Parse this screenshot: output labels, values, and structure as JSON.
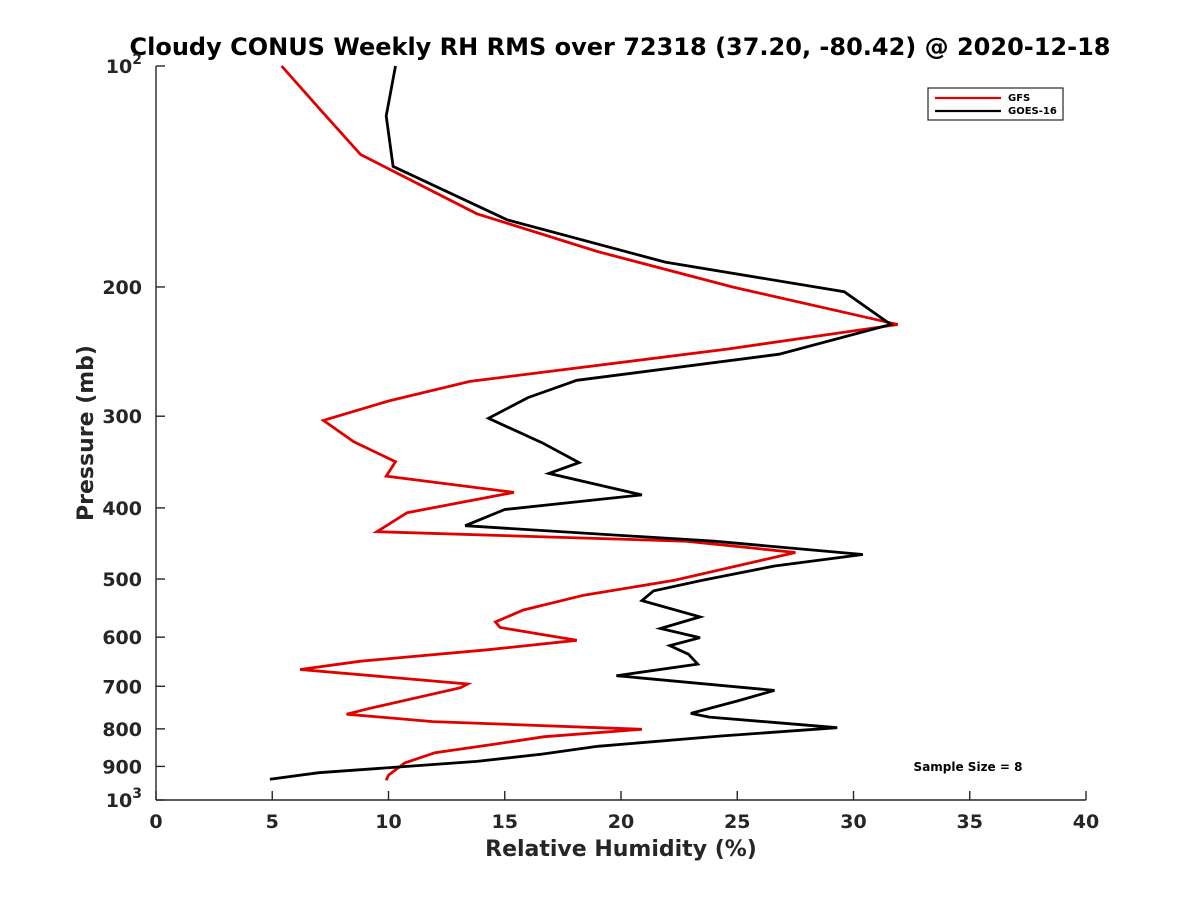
{
  "chart_data": {
    "type": "line",
    "title": "Cloudy CONUS Weekly RH RMS over 72318 (37.20, -80.42) @ 2020-12-18",
    "xlabel": "Relative Humidity (%)",
    "ylabel": "Pressure (mb)",
    "xlim": [
      0,
      40
    ],
    "ylim": [
      100,
      1000
    ],
    "yscale": "log",
    "y_reversed": true,
    "grid": false,
    "legend_position": "top-right",
    "x_ticks": [
      "0",
      "5",
      "10",
      "15",
      "20",
      "25",
      "30",
      "35",
      "40"
    ],
    "y_ticks": [
      {
        "value": 100,
        "base": "10",
        "exp": "2"
      },
      {
        "value": 200,
        "label": "200"
      },
      {
        "value": 300,
        "label": "300"
      },
      {
        "value": 400,
        "label": "400"
      },
      {
        "value": 500,
        "label": "500"
      },
      {
        "value": 600,
        "label": "600"
      },
      {
        "value": 700,
        "label": "700"
      },
      {
        "value": 800,
        "label": "800"
      },
      {
        "value": 900,
        "label": "900"
      },
      {
        "value": 1000,
        "base": "10",
        "exp": "3"
      }
    ],
    "series": [
      {
        "name": "GFS",
        "color": "#e00000",
        "points": [
          [
            5.4,
            100
          ],
          [
            7.1,
            115
          ],
          [
            8.8,
            132
          ],
          [
            13.8,
            159
          ],
          [
            19.0,
            179
          ],
          [
            24.8,
            200
          ],
          [
            31.9,
            225
          ],
          [
            24.6,
            243
          ],
          [
            13.5,
            269
          ],
          [
            10.0,
            286
          ],
          [
            7.2,
            304
          ],
          [
            8.5,
            325
          ],
          [
            10.3,
            346
          ],
          [
            9.9,
            362
          ],
          [
            15.4,
            381
          ],
          [
            10.8,
            406
          ],
          [
            9.5,
            431
          ],
          [
            22.8,
            444
          ],
          [
            27.5,
            460
          ],
          [
            22.3,
            502
          ],
          [
            18.4,
            526
          ],
          [
            15.8,
            551
          ],
          [
            14.6,
            572
          ],
          [
            14.8,
            582
          ],
          [
            18.1,
            606
          ],
          [
            14.3,
            624
          ],
          [
            8.8,
            647
          ],
          [
            6.2,
            664
          ],
          [
            13.4,
            695
          ],
          [
            13.1,
            703
          ],
          [
            9.2,
            750
          ],
          [
            8.2,
            764
          ],
          [
            11.9,
            782
          ],
          [
            20.9,
            801
          ],
          [
            16.7,
            820
          ],
          [
            14.5,
            840
          ],
          [
            12.0,
            862
          ],
          [
            10.7,
            890
          ],
          [
            10.0,
            925
          ],
          [
            9.9,
            940
          ]
        ]
      },
      {
        "name": "GOES-16",
        "color": "#000000",
        "points": [
          [
            10.3,
            100
          ],
          [
            9.9,
            117
          ],
          [
            10.2,
            137
          ],
          [
            15.1,
            162
          ],
          [
            21.9,
            185
          ],
          [
            29.6,
            203
          ],
          [
            31.6,
            225
          ],
          [
            26.8,
            247
          ],
          [
            18.1,
            268
          ],
          [
            16.0,
            283
          ],
          [
            14.3,
            302
          ],
          [
            16.6,
            326
          ],
          [
            18.2,
            347
          ],
          [
            16.9,
            359
          ],
          [
            20.9,
            384
          ],
          [
            15.0,
            402
          ],
          [
            13.3,
            423
          ],
          [
            24.0,
            444
          ],
          [
            30.4,
            463
          ],
          [
            26.6,
            480
          ],
          [
            23.5,
            502
          ],
          [
            21.4,
            519
          ],
          [
            20.9,
            535
          ],
          [
            23.4,
            563
          ],
          [
            21.7,
            584
          ],
          [
            23.4,
            601
          ],
          [
            22.1,
            616
          ],
          [
            22.9,
            633
          ],
          [
            23.3,
            653
          ],
          [
            19.8,
            677
          ],
          [
            26.6,
            709
          ],
          [
            25.0,
            733
          ],
          [
            23.0,
            762
          ],
          [
            23.8,
            771
          ],
          [
            29.3,
            797
          ],
          [
            24.3,
            818
          ],
          [
            19.0,
            845
          ],
          [
            16.6,
            866
          ],
          [
            13.8,
            886
          ],
          [
            7.0,
            918
          ],
          [
            4.9,
            937
          ]
        ]
      }
    ],
    "annotations": [
      "Sample Size = 8"
    ]
  }
}
